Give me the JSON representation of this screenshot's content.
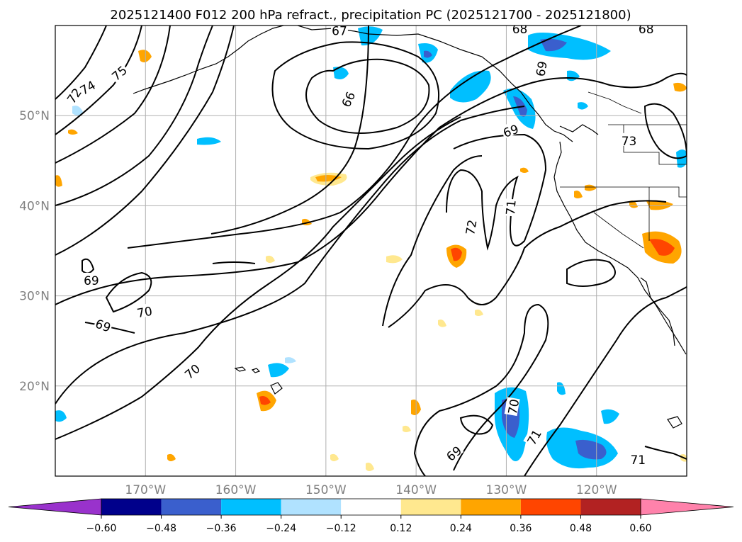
{
  "chart_data": {
    "type": "map",
    "title": "2025121400 F012 200 hPa refract., precipitation PC (2025121700 - 2025121800)",
    "lon_range": [
      -180,
      -110
    ],
    "lat_range": [
      10,
      60
    ],
    "grid": true,
    "lon_ticks": [
      {
        "lon": -170,
        "label": "170°W"
      },
      {
        "lon": -160,
        "label": "160°W"
      },
      {
        "lon": -150,
        "label": "150°W"
      },
      {
        "lon": -140,
        "label": "140°W"
      },
      {
        "lon": -130,
        "label": "130°W"
      },
      {
        "lon": -120,
        "label": "120°W"
      }
    ],
    "lat_ticks": [
      {
        "lat": 20,
        "label": "20°N"
      },
      {
        "lat": 30,
        "label": "30°N"
      },
      {
        "lat": 40,
        "label": "40°N"
      },
      {
        "lat": 50,
        "label": "50°N"
      }
    ],
    "contour_labels": [
      {
        "text": "75",
        "lon": -172.9,
        "lat": 54.7,
        "rot": -40
      },
      {
        "text": "74",
        "lon": -176.4,
        "lat": 53.1,
        "rot": -30
      },
      {
        "text": "72",
        "lon": -177.9,
        "lat": 52.2,
        "rot": -55
      },
      {
        "text": "67",
        "lon": -148.5,
        "lat": 59.4,
        "rot": 0
      },
      {
        "text": "66",
        "lon": -147.5,
        "lat": 51.8,
        "rot": -65
      },
      {
        "text": "68",
        "lon": -128.5,
        "lat": 59.6,
        "rot": 0
      },
      {
        "text": "68",
        "lon": -114.5,
        "lat": 59.6,
        "rot": 0
      },
      {
        "text": "69",
        "lon": -126.1,
        "lat": 55.2,
        "rot": -80
      },
      {
        "text": "69",
        "lon": -129.5,
        "lat": 48.3,
        "rot": -20
      },
      {
        "text": "73",
        "lon": -116.4,
        "lat": 47.2,
        "rot": 0
      },
      {
        "text": "71",
        "lon": -129.5,
        "lat": 39.8,
        "rot": -85
      },
      {
        "text": "72",
        "lon": -133.9,
        "lat": 37.6,
        "rot": -80
      },
      {
        "text": "69",
        "lon": -176.0,
        "lat": 31.7,
        "rot": 0
      },
      {
        "text": "70",
        "lon": -170.1,
        "lat": 28.2,
        "rot": -10
      },
      {
        "text": "69",
        "lon": -174.7,
        "lat": 26.7,
        "rot": 20
      },
      {
        "text": "70",
        "lon": -164.8,
        "lat": 21.6,
        "rot": -40
      },
      {
        "text": "70",
        "lon": -129.2,
        "lat": 17.7,
        "rot": -80
      },
      {
        "text": "71",
        "lon": -126.9,
        "lat": 14.3,
        "rot": -60
      },
      {
        "text": "69",
        "lon": -135.8,
        "lat": 12.5,
        "rot": -40
      },
      {
        "text": "71",
        "lon": -115.4,
        "lat": 11.8,
        "rot": 0
      }
    ],
    "colorbar": {
      "levels": [
        -0.6,
        -0.48,
        -0.36,
        -0.24,
        -0.12,
        0.12,
        0.24,
        0.36,
        0.48,
        0.6
      ],
      "tick_labels": [
        "−0.60",
        "−0.48",
        "−0.36",
        "−0.24",
        "−0.12",
        "0.12",
        "0.24",
        "0.36",
        "0.48",
        "0.60"
      ],
      "colors": [
        "#9932cc",
        "#00008b",
        "#3a5fcd",
        "#00bfff",
        "#b0e2ff",
        "#ffffff",
        "#ffe88f",
        "#ffa500",
        "#ff4500",
        "#b22222",
        "#ff82ab"
      ],
      "extend": "both"
    }
  }
}
